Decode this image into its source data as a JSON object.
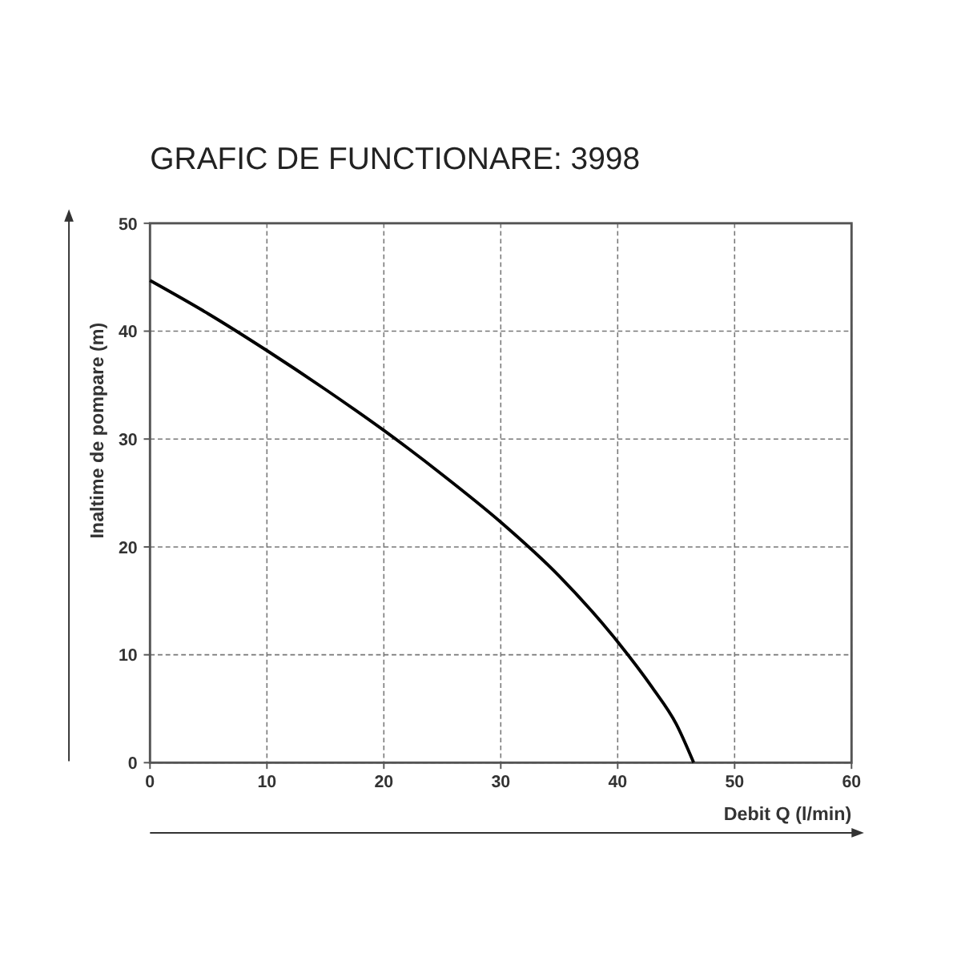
{
  "chart_data": {
    "type": "line",
    "title": "GRAFIC DE FUNCTIONARE: 3998",
    "xlabel": "Debit  Q (l/min)",
    "ylabel": "Inaltime de pompare (m)",
    "x": [
      0,
      5,
      10,
      15,
      20,
      25,
      30,
      35,
      40,
      43,
      45,
      46.5
    ],
    "series": [
      {
        "color": "#000000",
        "values": [
          44.7,
          41.6,
          38.2,
          34.6,
          30.8,
          26.7,
          22.3,
          17.3,
          11.2,
          6.9,
          3.6,
          0
        ]
      }
    ],
    "xlim": [
      0,
      60
    ],
    "xticks": [
      0,
      10,
      20,
      30,
      40,
      50,
      60
    ],
    "ylim": [
      0,
      50
    ],
    "yticks": [
      0,
      10,
      20,
      30,
      40,
      50
    ],
    "grid": true,
    "marker": "none",
    "line_style": "solid"
  }
}
